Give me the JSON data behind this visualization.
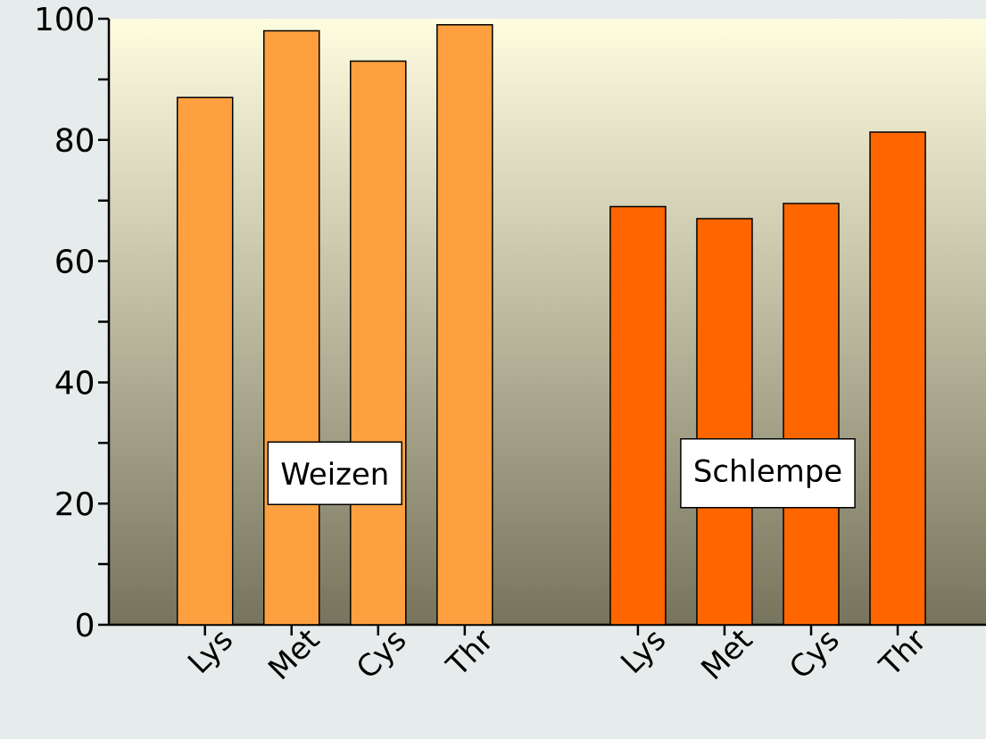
{
  "chart_data": {
    "type": "bar",
    "categories": [
      "Lys",
      "Met",
      "Cys",
      "Thr",
      null,
      "Lys",
      "Met",
      "Cys",
      "Thr"
    ],
    "series": [
      {
        "name": "Weizen",
        "color": "#ffa040",
        "values": [
          87,
          98,
          93,
          99,
          null,
          null,
          null,
          null,
          null
        ]
      },
      {
        "name": "Schlempe",
        "color": "#ff6600",
        "values": [
          null,
          null,
          null,
          null,
          null,
          69,
          67,
          69.5,
          81.3
        ]
      }
    ],
    "ylim": [
      0,
      100
    ],
    "yticks": [
      0,
      {
        "value": 10,
        "label": null
      },
      20,
      {
        "value": 30,
        "label": null
      },
      40,
      {
        "value": 50,
        "label": null
      },
      60,
      {
        "value": 70,
        "label": null
      },
      80,
      {
        "value": 90,
        "label": null
      },
      100
    ]
  }
}
